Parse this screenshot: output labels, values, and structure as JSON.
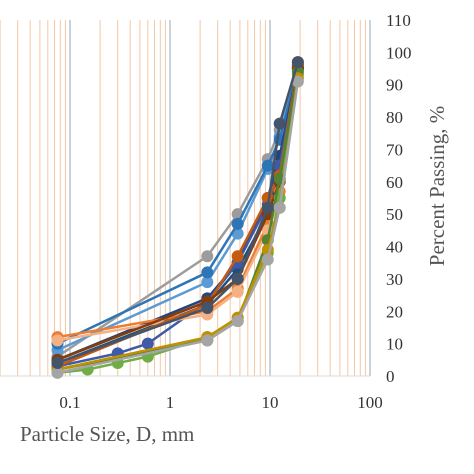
{
  "chart_data": {
    "type": "scatter",
    "xscale": "log",
    "xlim": [
      0.1,
      100
    ],
    "ylim": [
      0,
      110
    ],
    "xlabel": "Particle Size, D, mm",
    "ylabel": "Percent Passing, %",
    "x_ticks": [
      "0.1",
      "1",
      "10",
      "100"
    ],
    "y_ticks": [
      "0",
      "10",
      "20",
      "30",
      "40",
      "50",
      "60",
      "70",
      "80",
      "90",
      "100",
      "110"
    ],
    "grid": true,
    "grid_colors": {
      "major": "#a6b3c4",
      "minor": "#f4c7a5"
    },
    "series": [
      {
        "color": "#9c9c9c",
        "x": [
          0.075,
          2.36,
          4.75,
          9.5,
          12.5,
          19
        ],
        "y": [
          6,
          37,
          50,
          67,
          76,
          96
        ]
      },
      {
        "color": "#5b9bd5",
        "x": [
          0.075,
          2.36,
          4.75,
          9.5,
          12.5,
          19
        ],
        "y": [
          8,
          29,
          44,
          64,
          74,
          96
        ]
      },
      {
        "color": "#2e75b6",
        "x": [
          0.075,
          2.36,
          4.75,
          9.5,
          12.5,
          19
        ],
        "y": [
          10,
          32,
          47,
          65,
          73,
          95
        ]
      },
      {
        "color": "#1f4e79",
        "x": [
          0.075,
          2.36,
          4.75,
          9.5,
          12.5,
          19
        ],
        "y": [
          4,
          22,
          33,
          50,
          63,
          96
        ]
      },
      {
        "color": "#264478",
        "x": [
          0.075,
          2.36,
          4.75,
          9.5,
          12.5,
          19
        ],
        "y": [
          5,
          24,
          35,
          55,
          68,
          95
        ]
      },
      {
        "color": "#3e5aa8",
        "x": [
          0.075,
          0.3,
          0.6,
          2.36,
          4.75,
          9.5,
          12.5,
          19
        ],
        "y": [
          3,
          7,
          10,
          23,
          35,
          53,
          65,
          95
        ]
      },
      {
        "color": "#ed7d31",
        "x": [
          0.075,
          2.36,
          4.75,
          9.5,
          12.5,
          19
        ],
        "y": [
          12,
          20,
          27,
          47,
          57,
          97
        ]
      },
      {
        "color": "#f4b183",
        "x": [
          0.075,
          2.36,
          4.75,
          9.5,
          12.5,
          19
        ],
        "y": [
          11,
          19,
          26,
          45,
          55,
          96
        ]
      },
      {
        "color": "#c55a11",
        "x": [
          0.075,
          2.36,
          4.75,
          9.5,
          12.5,
          19
        ],
        "y": [
          3,
          22,
          37,
          55,
          62,
          96
        ]
      },
      {
        "color": "#843c0c",
        "x": [
          0.075,
          2.36,
          4.75,
          9.5,
          12.5,
          19
        ],
        "y": [
          5,
          23,
          30,
          50,
          60,
          95
        ]
      },
      {
        "color": "#70ad47",
        "x": [
          0.075,
          0.15,
          0.3,
          0.6,
          2.36,
          4.75,
          9.5,
          12.5,
          19
        ],
        "y": [
          1,
          2,
          4,
          6,
          12,
          18,
          38,
          55,
          93
        ]
      },
      {
        "color": "#548235",
        "x": [
          0.075,
          2.36,
          4.75,
          9.5,
          12.5,
          19
        ],
        "y": [
          2,
          11,
          17,
          42,
          61,
          94
        ]
      },
      {
        "color": "#bf9000",
        "x": [
          0.075,
          2.36,
          4.75,
          9.5,
          12.5,
          19
        ],
        "y": [
          2,
          12,
          18,
          39,
          52,
          92
        ]
      },
      {
        "color": "#a5a5a5",
        "x": [
          0.075,
          2.36,
          4.75,
          9.5,
          12.5,
          19
        ],
        "y": [
          1,
          11,
          17,
          36,
          52,
          91
        ]
      },
      {
        "color": "#44546a",
        "x": [
          0.075,
          2.36,
          4.75,
          9.5,
          12.5,
          19
        ],
        "y": [
          4,
          21,
          30,
          52,
          78,
          97
        ]
      }
    ]
  }
}
